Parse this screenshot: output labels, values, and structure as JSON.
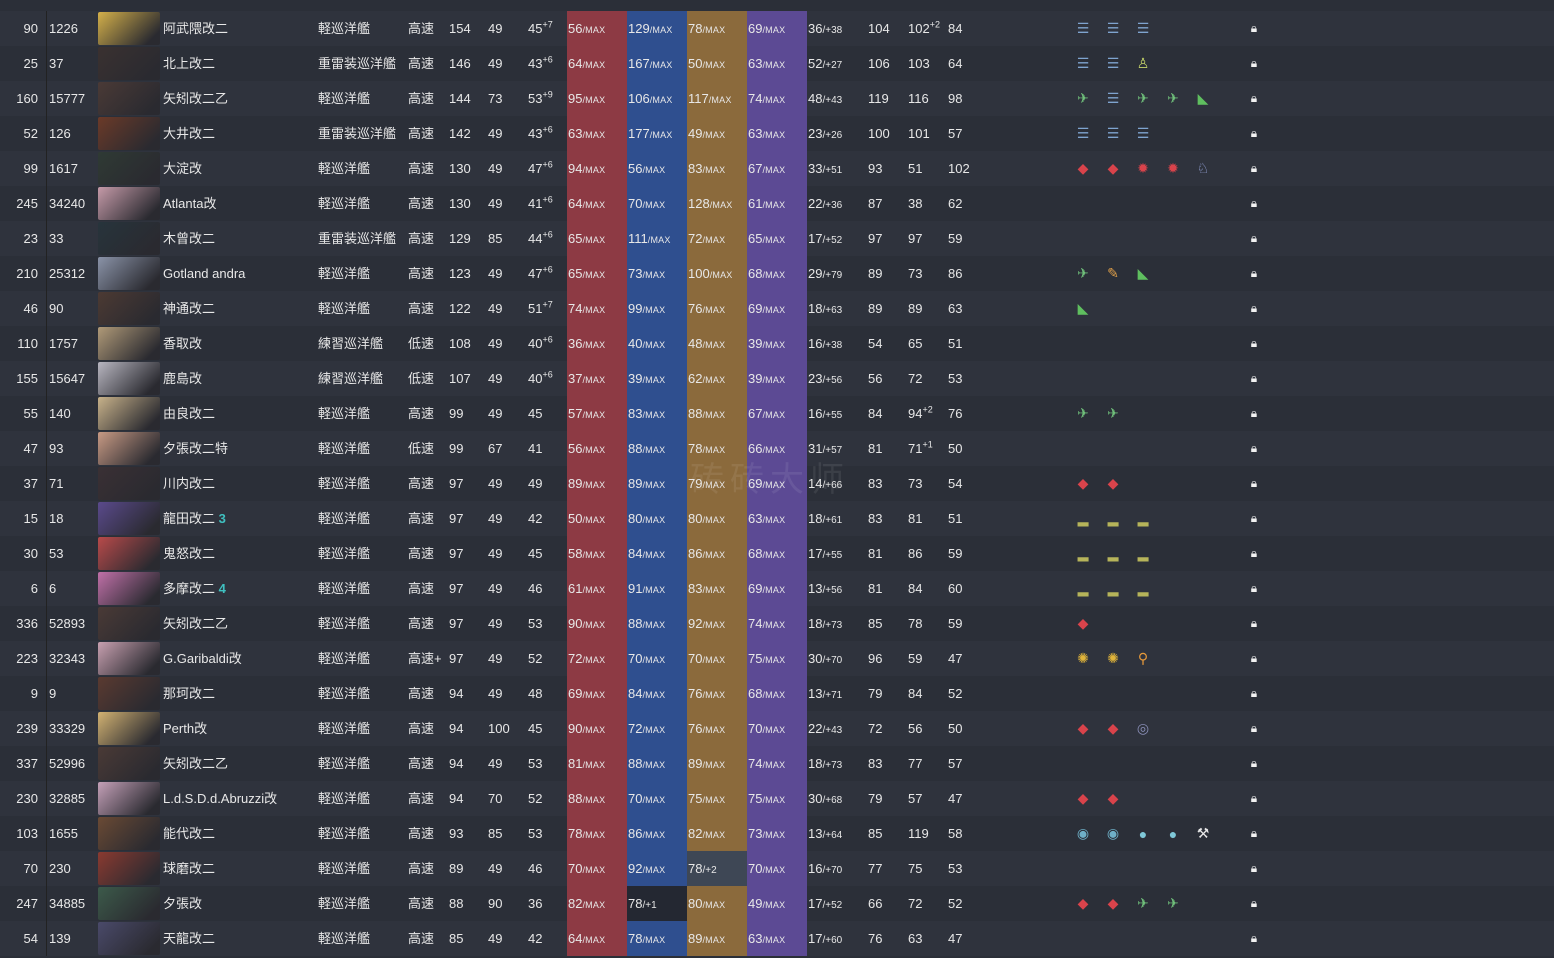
{
  "watermark": "砖砖大师",
  "rows": [
    {
      "idx": "90",
      "sid": "1226",
      "name": "阿武隈改二",
      "type": "軽巡洋艦",
      "speed": "高速",
      "lv": "154",
      "cd": "49",
      "luck": "45",
      "luck_sup": "+7",
      "fp": "56",
      "tp": "129",
      "aa": "78",
      "ar": "69",
      "asw": "36",
      "asw_sub": "/+38",
      "ev": "104",
      "los": "102",
      "los_sup": "+2",
      "hp": "84",
      "eq": [
        "menu-icon",
        "menu-icon",
        "menu-icon"
      ],
      "avatar": "#d4b04a"
    },
    {
      "idx": "25",
      "sid": "37",
      "name": "北上改二",
      "type": "重雷装巡洋艦",
      "speed": "高速",
      "lv": "146",
      "cd": "49",
      "luck": "43",
      "luck_sup": "+6",
      "fp": "64",
      "tp": "167",
      "aa": "50",
      "ar": "63",
      "asw": "52",
      "asw_sub": "/+27",
      "ev": "106",
      "los": "103",
      "los_sup": "",
      "hp": "64",
      "eq": [
        "menu-icon",
        "menu-icon",
        "crew-icon"
      ],
      "avatar": "#3a3130"
    },
    {
      "idx": "160",
      "sid": "15777",
      "name": "矢矧改二乙",
      "type": "軽巡洋艦",
      "speed": "高速",
      "lv": "144",
      "cd": "73",
      "luck": "53",
      "luck_sup": "+9",
      "fp": "95",
      "tp": "106",
      "aa": "117",
      "ar": "74",
      "asw": "48",
      "asw_sub": "/+43",
      "ev": "119",
      "los": "116",
      "los_sup": "",
      "hp": "98",
      "eq": [
        "seaplane-icon",
        "menu-icon",
        "seaplane-icon",
        "seaplane-icon",
        "tank-icon"
      ],
      "avatar": "#4a3a36"
    },
    {
      "idx": "52",
      "sid": "126",
      "name": "大井改二",
      "type": "重雷装巡洋艦",
      "speed": "高速",
      "lv": "142",
      "cd": "49",
      "luck": "43",
      "luck_sup": "+6",
      "fp": "63",
      "tp": "177",
      "aa": "49",
      "ar": "63",
      "asw": "23",
      "asw_sub": "/+26",
      "ev": "100",
      "los": "101",
      "los_sup": "",
      "hp": "57",
      "eq": [
        "menu-icon",
        "menu-icon",
        "menu-icon"
      ],
      "avatar": "#6b3a28"
    },
    {
      "idx": "99",
      "sid": "1617",
      "name": "大淀改",
      "type": "軽巡洋艦",
      "speed": "高速",
      "lv": "130",
      "cd": "49",
      "luck": "47",
      "luck_sup": "+6",
      "fp": "94",
      "tp": "56",
      "aa": "83",
      "ar": "67",
      "asw": "33",
      "asw_sub": "/+51",
      "ev": "93",
      "los": "51",
      "los_sup": "",
      "hp": "102",
      "eq": [
        "gun-icon",
        "gun-icon",
        "shell-icon",
        "shell-icon",
        "personnel-icon"
      ],
      "avatar": "#2f3a34"
    },
    {
      "idx": "245",
      "sid": "34240",
      "name": "Atlanta改",
      "type": "軽巡洋艦",
      "speed": "高速",
      "lv": "130",
      "cd": "49",
      "luck": "41",
      "luck_sup": "+6",
      "fp": "64",
      "tp": "70",
      "aa": "128",
      "ar": "61",
      "asw": "22",
      "asw_sub": "/+36",
      "ev": "87",
      "los": "38",
      "los_sup": "",
      "hp": "62",
      "eq": [],
      "avatar": "#c59aa8"
    },
    {
      "idx": "23",
      "sid": "33",
      "name": "木曾改二",
      "type": "重雷装巡洋艦",
      "speed": "高速",
      "lv": "129",
      "cd": "85",
      "luck": "44",
      "luck_sup": "+6",
      "fp": "65",
      "tp": "111",
      "aa": "72",
      "ar": "65",
      "asw": "17",
      "asw_sub": "/+52",
      "ev": "97",
      "los": "97",
      "los_sup": "",
      "hp": "59",
      "eq": [],
      "avatar": "#27343c"
    },
    {
      "idx": "210",
      "sid": "25312",
      "name": "Gotland andra",
      "type": "軽巡洋艦",
      "speed": "高速",
      "lv": "123",
      "cd": "49",
      "luck": "47",
      "luck_sup": "+6",
      "fp": "65",
      "tp": "73",
      "aa": "100",
      "ar": "68",
      "asw": "29",
      "asw_sub": "/+79",
      "ev": "89",
      "los": "73",
      "los_sup": "",
      "hp": "86",
      "eq": [
        "seaplane-icon",
        "wrench-icon",
        "tank-icon"
      ],
      "avatar": "#8a93a8"
    },
    {
      "idx": "46",
      "sid": "90",
      "name": "神通改二",
      "type": "軽巡洋艦",
      "speed": "高速",
      "lv": "122",
      "cd": "49",
      "luck": "51",
      "luck_sup": "+7",
      "fp": "74",
      "tp": "99",
      "aa": "76",
      "ar": "69",
      "asw": "18",
      "asw_sub": "/+63",
      "ev": "89",
      "los": "89",
      "los_sup": "",
      "hp": "63",
      "eq": [
        "tank-icon"
      ],
      "avatar": "#4c3a33"
    },
    {
      "idx": "110",
      "sid": "1757",
      "name": "香取改",
      "type": "練習巡洋艦",
      "speed": "低速",
      "lv": "108",
      "cd": "49",
      "luck": "40",
      "luck_sup": "+6",
      "fp": "36",
      "tp": "40",
      "aa": "48",
      "ar": "39",
      "asw": "16",
      "asw_sub": "/+38",
      "ev": "54",
      "los": "65",
      "los_sup": "",
      "hp": "51",
      "eq": [],
      "avatar": "#b09a78"
    },
    {
      "idx": "155",
      "sid": "15647",
      "name": "鹿島改",
      "type": "練習巡洋艦",
      "speed": "低速",
      "lv": "107",
      "cd": "49",
      "luck": "40",
      "luck_sup": "+6",
      "fp": "37",
      "tp": "39",
      "aa": "62",
      "ar": "39",
      "asw": "23",
      "asw_sub": "/+56",
      "ev": "56",
      "los": "72",
      "los_sup": "",
      "hp": "53",
      "eq": [],
      "avatar": "#b8b6c0"
    },
    {
      "idx": "55",
      "sid": "140",
      "name": "由良改二",
      "type": "軽巡洋艦",
      "speed": "高速",
      "lv": "99",
      "cd": "49",
      "luck": "45",
      "luck_sup": "",
      "fp": "57",
      "tp": "83",
      "aa": "88",
      "ar": "67",
      "asw": "16",
      "asw_sub": "/+55",
      "ev": "84",
      "los": "94",
      "los_sup": "+2",
      "hp": "76",
      "eq": [
        "seaplane-icon",
        "seaplane-icon"
      ],
      "avatar": "#c8b28a"
    },
    {
      "idx": "47",
      "sid": "93",
      "name": "夕張改二特",
      "type": "軽巡洋艦",
      "speed": "低速",
      "lv": "99",
      "cd": "67",
      "luck": "41",
      "luck_sup": "",
      "fp": "56",
      "tp": "88",
      "aa": "78",
      "ar": "66",
      "asw": "31",
      "asw_sub": "/+57",
      "ev": "81",
      "los": "71",
      "los_sup": "+1",
      "hp": "50",
      "eq": [],
      "avatar": "#c89a84"
    },
    {
      "idx": "37",
      "sid": "71",
      "name": "川内改二",
      "type": "軽巡洋艦",
      "speed": "高速",
      "lv": "97",
      "cd": "49",
      "luck": "49",
      "luck_sup": "",
      "fp": "89",
      "tp": "89",
      "aa": "79",
      "ar": "69",
      "asw": "14",
      "asw_sub": "/+66",
      "ev": "83",
      "los": "73",
      "los_sup": "",
      "hp": "54",
      "eq": [
        "gun-icon",
        "gun-icon"
      ],
      "avatar": "#3a3034"
    },
    {
      "idx": "15",
      "sid": "18",
      "name": "龍田改二",
      "type": "軽巡洋艦",
      "speed": "高速",
      "lv": "97",
      "cd": "49",
      "luck": "42",
      "luck_sup": "",
      "fp": "50",
      "tp": "80",
      "aa": "80",
      "ar": "63",
      "asw": "18",
      "asw_sub": "/+61",
      "ev": "83",
      "los": "81",
      "los_sup": "",
      "hp": "51",
      "eq": [
        "boat-icon",
        "boat-icon",
        "boat-icon"
      ],
      "avatar": "#5a4a8c",
      "badge": "3"
    },
    {
      "idx": "30",
      "sid": "53",
      "name": "鬼怒改二",
      "type": "軽巡洋艦",
      "speed": "高速",
      "lv": "97",
      "cd": "49",
      "luck": "45",
      "luck_sup": "",
      "fp": "58",
      "tp": "84",
      "aa": "86",
      "ar": "68",
      "asw": "17",
      "asw_sub": "/+55",
      "ev": "81",
      "los": "86",
      "los_sup": "",
      "hp": "59",
      "eq": [
        "boat-icon",
        "boat-icon",
        "boat-icon"
      ],
      "avatar": "#b84a4a"
    },
    {
      "idx": "6",
      "sid": "6",
      "name": "多摩改二",
      "type": "軽巡洋艦",
      "speed": "高速",
      "lv": "97",
      "cd": "49",
      "luck": "46",
      "luck_sup": "",
      "fp": "61",
      "tp": "91",
      "aa": "83",
      "ar": "69",
      "asw": "13",
      "asw_sub": "/+56",
      "ev": "81",
      "los": "84",
      "los_sup": "",
      "hp": "60",
      "eq": [
        "boat-icon",
        "boat-icon",
        "boat-icon"
      ],
      "avatar": "#c070a8",
      "badge": "4"
    },
    {
      "idx": "336",
      "sid": "52893",
      "name": "矢矧改二乙",
      "type": "軽巡洋艦",
      "speed": "高速",
      "lv": "97",
      "cd": "49",
      "luck": "53",
      "luck_sup": "",
      "fp": "90",
      "tp": "88",
      "aa": "92",
      "ar": "74",
      "asw": "18",
      "asw_sub": "/+73",
      "ev": "85",
      "los": "78",
      "los_sup": "",
      "hp": "59",
      "eq": [
        "gun-icon"
      ],
      "avatar": "#4a3a36"
    },
    {
      "idx": "223",
      "sid": "32343",
      "name": "G.Garibaldi改",
      "type": "軽巡洋艦",
      "speed": "高速+",
      "lv": "97",
      "cd": "49",
      "luck": "52",
      "luck_sup": "",
      "fp": "72",
      "tp": "70",
      "aa": "70",
      "ar": "75",
      "asw": "30",
      "asw_sub": "/+70",
      "ev": "96",
      "los": "59",
      "los_sup": "",
      "hp": "47",
      "eq": [
        "sun-icon",
        "sun-icon",
        "key-icon"
      ],
      "avatar": "#c8a0b0"
    },
    {
      "idx": "9",
      "sid": "9",
      "name": "那珂改二",
      "type": "軽巡洋艦",
      "speed": "高速",
      "lv": "94",
      "cd": "49",
      "luck": "48",
      "luck_sup": "",
      "fp": "69",
      "tp": "84",
      "aa": "76",
      "ar": "68",
      "asw": "13",
      "asw_sub": "/+71",
      "ev": "79",
      "los": "84",
      "los_sup": "",
      "hp": "52",
      "eq": [],
      "avatar": "#5a3a30"
    },
    {
      "idx": "239",
      "sid": "33329",
      "name": "Perth改",
      "type": "軽巡洋艦",
      "speed": "高速",
      "lv": "94",
      "cd": "100",
      "luck": "45",
      "luck_sup": "",
      "fp": "90",
      "tp": "72",
      "aa": "76",
      "ar": "70",
      "asw": "22",
      "asw_sub": "/+43",
      "ev": "72",
      "los": "56",
      "los_sup": "",
      "hp": "50",
      "eq": [
        "gun-icon",
        "gun-icon",
        "radar-icon"
      ],
      "avatar": "#d2b272"
    },
    {
      "idx": "337",
      "sid": "52996",
      "name": "矢矧改二乙",
      "type": "軽巡洋艦",
      "speed": "高速",
      "lv": "94",
      "cd": "49",
      "luck": "53",
      "luck_sup": "",
      "fp": "81",
      "tp": "88",
      "aa": "89",
      "ar": "74",
      "asw": "18",
      "asw_sub": "/+73",
      "ev": "83",
      "los": "77",
      "los_sup": "",
      "hp": "57",
      "eq": [],
      "avatar": "#4a3a36"
    },
    {
      "idx": "230",
      "sid": "32885",
      "name": "L.d.S.D.d.Abruzzi改",
      "type": "軽巡洋艦",
      "speed": "高速",
      "lv": "94",
      "cd": "70",
      "luck": "52",
      "luck_sup": "",
      "fp": "88",
      "tp": "70",
      "aa": "75",
      "ar": "75",
      "asw": "30",
      "asw_sub": "/+68",
      "ev": "79",
      "los": "57",
      "los_sup": "",
      "hp": "47",
      "eq": [
        "gun-icon",
        "gun-icon"
      ],
      "avatar": "#c4a0b8"
    },
    {
      "idx": "103",
      "sid": "1655",
      "name": "能代改二",
      "type": "軽巡洋艦",
      "speed": "高速",
      "lv": "93",
      "cd": "85",
      "luck": "53",
      "luck_sup": "",
      "fp": "78",
      "tp": "86",
      "aa": "82",
      "ar": "73",
      "asw": "13",
      "asw_sub": "/+64",
      "ev": "85",
      "los": "119",
      "los_sup": "",
      "hp": "58",
      "eq": [
        "sonar-icon",
        "sonar-icon",
        "depth-charge-icon",
        "depth-charge-icon",
        "pickaxe-icon"
      ],
      "avatar": "#6a4a34"
    },
    {
      "idx": "70",
      "sid": "230",
      "name": "球磨改二",
      "type": "軽巡洋艦",
      "speed": "高速",
      "lv": "89",
      "cd": "49",
      "luck": "46",
      "luck_sup": "",
      "fp": "70",
      "tp": "92",
      "aa": "78",
      "aa_sub": "/+2",
      "ar": "70",
      "asw": "16",
      "asw_sub": "/+70",
      "ev": "77",
      "los": "75",
      "los_sup": "",
      "hp": "53",
      "eq": [],
      "avatar": "#8a3a30",
      "aa_hl": true
    },
    {
      "idx": "247",
      "sid": "34885",
      "name": "夕張改",
      "type": "軽巡洋艦",
      "speed": "高速",
      "lv": "88",
      "cd": "90",
      "luck": "36",
      "luck_sup": "",
      "fp": "82",
      "tp": "78",
      "tp_sub": "/+1",
      "aa": "80",
      "ar": "49",
      "asw": "17",
      "asw_sub": "/+52",
      "ev": "66",
      "los": "72",
      "los_sup": "",
      "hp": "52",
      "eq": [
        "gun-icon",
        "gun-icon",
        "seaplane-icon",
        "seaplane-icon"
      ],
      "avatar": "#3c5a4a",
      "tp_dk": true
    },
    {
      "idx": "54",
      "sid": "139",
      "name": "天龍改二",
      "type": "軽巡洋艦",
      "speed": "高速",
      "lv": "85",
      "cd": "49",
      "luck": "42",
      "luck_sup": "",
      "fp": "64",
      "tp": "78",
      "aa": "89",
      "ar": "63",
      "asw": "17",
      "asw_sub": "/+60",
      "ev": "76",
      "los": "63",
      "los_sup": "",
      "hp": "47",
      "eq": [],
      "avatar": "#4a4a6a"
    }
  ],
  "max_label": "MAX",
  "icon_colors": {
    "menu-icon": "#7fa4cf",
    "crew-icon": "#c8d86a",
    "seaplane-icon": "#6fbf7a",
    "tank-icon": "#5fbf5f",
    "gun-icon": "#d9434b",
    "shell-icon": "#d9434b",
    "personnel-icon": "#9aa8e0",
    "wrench-icon": "#e0a04a",
    "boat-icon": "#b6b45a",
    "sun-icon": "#e0b43a",
    "key-icon": "#e89a3a",
    "radar-icon": "#8a8fb8",
    "sonar-icon": "#6fb0c8",
    "depth-charge-icon": "#7fc8d8",
    "pickaxe-icon": "#e8e8e8"
  }
}
